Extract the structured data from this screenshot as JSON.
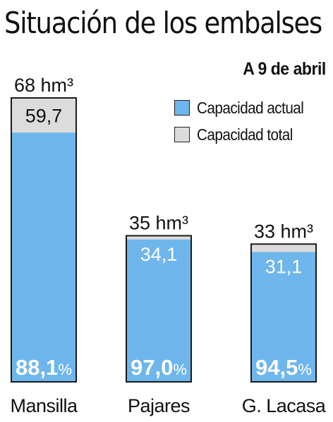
{
  "chart_data": {
    "type": "bar",
    "title": "Situación de los embalses",
    "subtitle": "A 9 de abril",
    "categories": [
      "Mansilla",
      "Pajares",
      "G. Lacasa"
    ],
    "series": [
      {
        "name": "Capacidad actual",
        "values": [
          59.7,
          34.1,
          31.1
        ],
        "labels": [
          "59,7",
          "34,1",
          "31,1"
        ],
        "color": "#6fb6ec"
      },
      {
        "name": "Capacidad total",
        "values": [
          68,
          35,
          33
        ],
        "labels": [
          "68 hm³",
          "35 hm³",
          "33 hm³"
        ],
        "color": "#dcdcdc"
      }
    ],
    "percentages": [
      "88,1",
      "97,0",
      "94,5"
    ],
    "percent_sign": "%",
    "ylim": [
      0,
      68
    ]
  },
  "legend": {
    "actual_label": "Capacidad actual",
    "total_label": "Capacidad total",
    "actual_color": "#6fb6ec",
    "total_color": "#dcdcdc"
  }
}
